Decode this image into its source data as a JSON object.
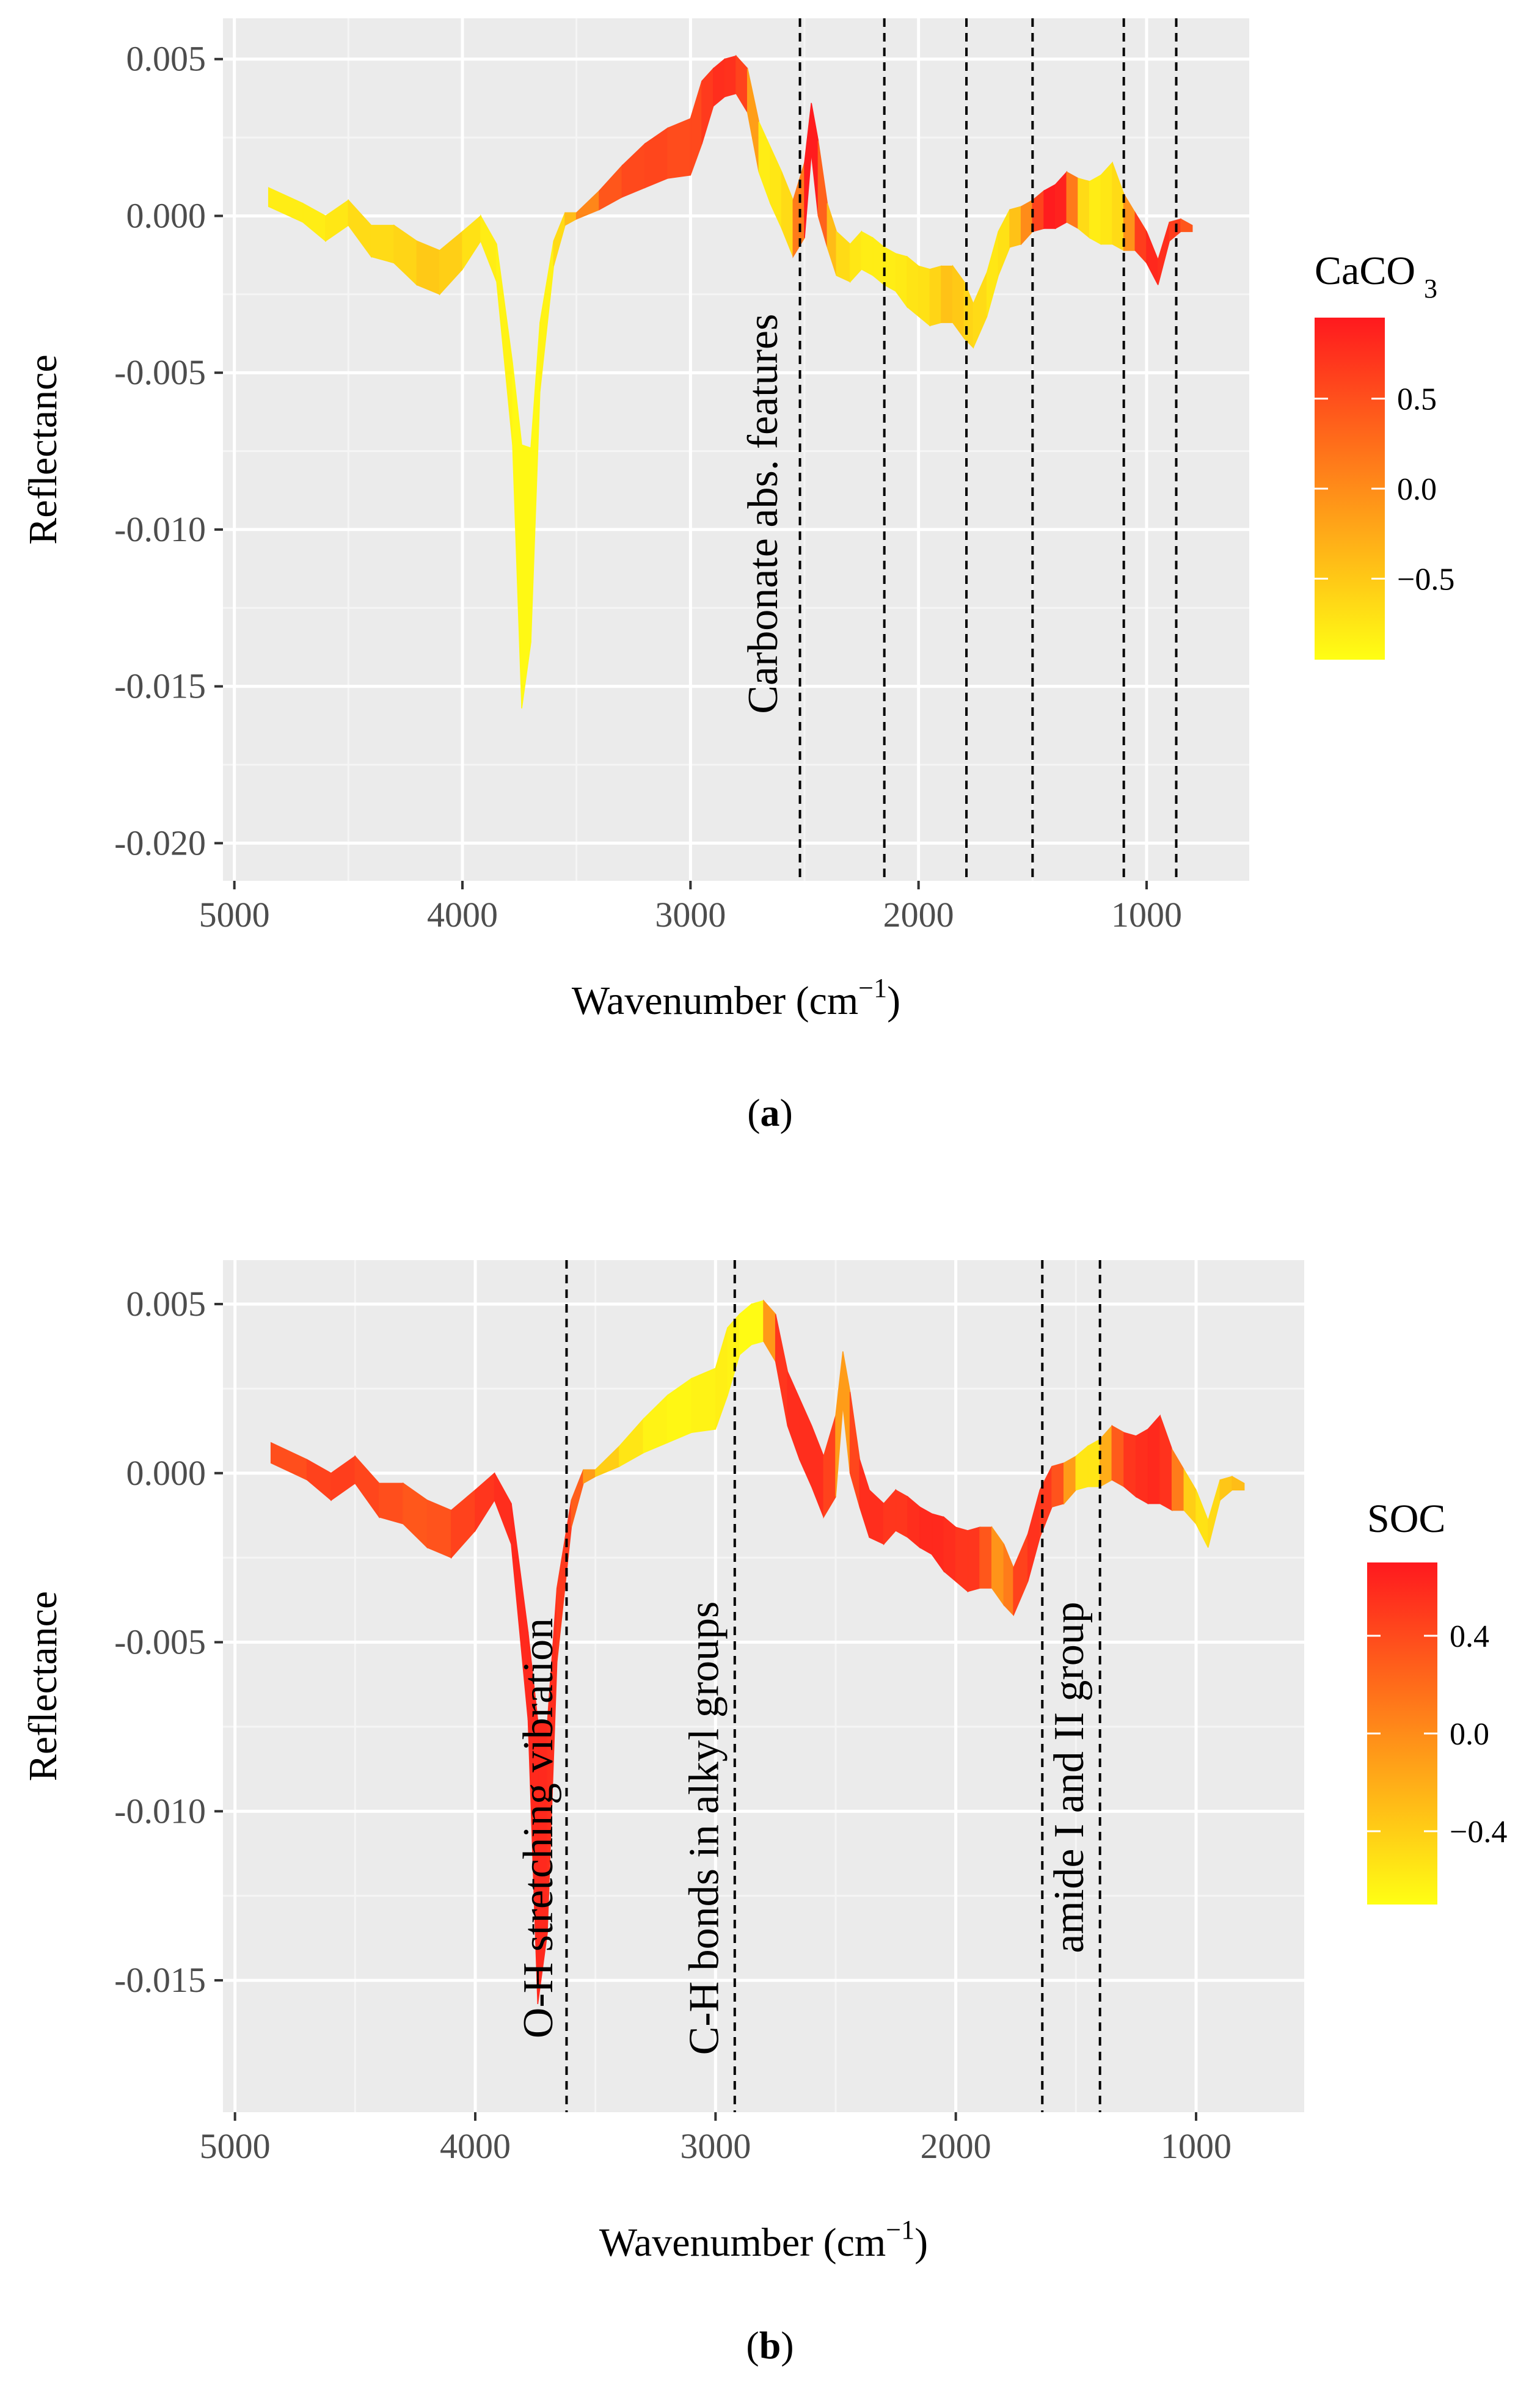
{
  "chart_data": [
    {
      "type": "line",
      "panel": "a",
      "caption_letter": "a",
      "xlabel": "Wavenumber (cm",
      "xlabel_sup": "−1",
      "xlabel_end": ")",
      "ylabel": "Reflectance",
      "xlim": [
        5050,
        550
      ],
      "ylim": [
        -0.0212,
        0.0063
      ],
      "xticks": [
        5000,
        4000,
        3000,
        2000,
        1000
      ],
      "yticks": [
        0.005,
        0.0,
        -0.005,
        -0.01,
        -0.015,
        -0.02
      ],
      "ytick_labels": [
        "0.005",
        "0.000",
        "-0.005",
        "-0.010",
        "-0.015",
        "-0.020"
      ],
      "legend_title": "CaCO",
      "legend_title_sub": "3",
      "legend_range": [
        -0.95,
        0.95
      ],
      "legend_ticks": [
        0.5,
        0.0,
        -0.5
      ],
      "legend_tick_labels": [
        "0.5",
        "0.0",
        "−0.5"
      ],
      "vlines": [
        2520,
        2150,
        1790,
        1500,
        1100,
        870
      ],
      "annotations": [
        {
          "text": "Carbonate abs. features",
          "x": 2620,
          "y": -0.0095
        }
      ],
      "spectrum_x": [
        4850,
        4700,
        4600,
        4500,
        4400,
        4300,
        4200,
        4100,
        4000,
        3920,
        3850,
        3780,
        3740,
        3700,
        3660,
        3600,
        3550,
        3500,
        3400,
        3300,
        3200,
        3100,
        3000,
        2950,
        2900,
        2850,
        2800,
        2750,
        2700,
        2650,
        2600,
        2550,
        2500,
        2470,
        2440,
        2400,
        2360,
        2300,
        2250,
        2200,
        2150,
        2100,
        2050,
        2000,
        1950,
        1900,
        1850,
        1800,
        1760,
        1700,
        1650,
        1600,
        1550,
        1500,
        1450,
        1400,
        1350,
        1300,
        1250,
        1200,
        1150,
        1100,
        1050,
        1000,
        950,
        900,
        850,
        800
      ],
      "spectrum_y": [
        0.0006,
        0.0001,
        -0.0004,
        0.0001,
        -0.0008,
        -0.0009,
        -0.0015,
        -0.0018,
        -0.0011,
        -0.0004,
        -0.0015,
        -0.006,
        -0.0115,
        -0.0105,
        -0.0045,
        -0.0012,
        -0.0001,
        0.0,
        0.0005,
        0.0011,
        0.0016,
        0.002,
        0.0022,
        0.0033,
        0.0041,
        0.0044,
        0.0045,
        0.004,
        0.0022,
        0.0013,
        0.0005,
        -0.0004,
        0.0005,
        0.0028,
        0.0012,
        -0.0003,
        -0.0012,
        -0.0015,
        -0.0011,
        -0.0013,
        -0.0016,
        -0.0018,
        -0.0021,
        -0.0024,
        -0.0026,
        -0.0025,
        -0.0025,
        -0.003,
        -0.0035,
        -0.0025,
        -0.0012,
        -0.0004,
        -0.0003,
        0.0,
        0.0002,
        0.0003,
        0.0006,
        0.0004,
        0.0002,
        0.0002,
        0.0004,
        -0.0002,
        -0.0005,
        -0.001,
        -0.0018,
        -0.0005,
        -0.0003,
        -0.0004
      ],
      "spectrum_halfwidth": [
        0.0003,
        0.0003,
        0.0004,
        0.0004,
        0.0005,
        0.0006,
        0.0007,
        0.0007,
        0.0006,
        0.0004,
        0.0006,
        0.0013,
        0.0042,
        0.0031,
        0.0011,
        0.0004,
        0.0002,
        0.0001,
        0.0003,
        0.0005,
        0.0007,
        0.0008,
        0.0009,
        0.001,
        0.0006,
        0.0006,
        0.0006,
        0.0007,
        0.0008,
        0.0009,
        0.0009,
        0.0009,
        0.0012,
        0.0008,
        0.0012,
        0.0007,
        0.0007,
        0.0006,
        0.0006,
        0.0006,
        0.0006,
        0.0006,
        0.0008,
        0.0008,
        0.0009,
        0.0009,
        0.0009,
        0.0009,
        0.0007,
        0.0007,
        0.0007,
        0.0006,
        0.0006,
        0.0005,
        0.0006,
        0.0007,
        0.0008,
        0.0008,
        0.0009,
        0.0011,
        0.0013,
        0.0009,
        0.0006,
        0.0005,
        0.0004,
        0.0003,
        0.0002,
        0.0001
      ],
      "spectrum_color_value": [
        -0.8,
        -0.8,
        -0.8,
        -0.7,
        -0.6,
        -0.7,
        -0.5,
        -0.5,
        -0.6,
        -0.8,
        -0.8,
        -0.9,
        -0.9,
        -0.9,
        -0.9,
        -0.8,
        -0.5,
        -0.3,
        0.4,
        0.5,
        0.6,
        0.55,
        0.5,
        0.6,
        0.75,
        0.8,
        0.7,
        0.5,
        -0.8,
        -0.8,
        -0.7,
        -0.6,
        0.9,
        0.95,
        0.9,
        -0.2,
        -0.6,
        -0.7,
        -0.8,
        -0.8,
        -0.8,
        -0.8,
        -0.75,
        -0.7,
        -0.7,
        -0.5,
        -0.4,
        -0.6,
        -0.6,
        -0.7,
        -0.8,
        -0.6,
        -0.3,
        0.3,
        0.9,
        0.95,
        0.8,
        -0.5,
        -0.8,
        -0.8,
        -0.7,
        -0.6,
        0.5,
        0.8,
        0.85,
        0.7,
        0.6,
        0.3
      ]
    },
    {
      "type": "line",
      "panel": "b",
      "caption_letter": "b",
      "xlabel": "Wavenumber (cm",
      "xlabel_sup": "−1",
      "xlabel_end": ")",
      "ylabel": "Reflectance",
      "xlim": [
        5050,
        550
      ],
      "ylim": [
        -0.0189,
        0.0063
      ],
      "xticks": [
        5000,
        4000,
        3000,
        2000,
        1000
      ],
      "yticks": [
        0.005,
        0.0,
        -0.005,
        -0.01,
        -0.015
      ],
      "ytick_labels": [
        "0.005",
        "0.000",
        "-0.005",
        "-0.010",
        "-0.015"
      ],
      "legend_title": "SOC",
      "legend_range": [
        -0.7,
        0.7
      ],
      "legend_ticks": [
        0.4,
        0.0,
        -0.4
      ],
      "legend_tick_labels": [
        "0.4",
        "0.0",
        "−0.4"
      ],
      "vlines": [
        3620,
        2920,
        1640,
        1400
      ],
      "annotations": [
        {
          "text": "O-H stretching vibration",
          "x": 3680,
          "y": -0.0105
        },
        {
          "text": "C-H  bonds in alkyl groups",
          "x": 2990,
          "y": -0.0105
        },
        {
          "text": "amide I and II group",
          "x": 1470,
          "y": -0.009
        }
      ],
      "spectrum_x": [
        4850,
        4700,
        4600,
        4500,
        4400,
        4300,
        4200,
        4100,
        4000,
        3920,
        3850,
        3780,
        3740,
        3700,
        3660,
        3600,
        3550,
        3500,
        3400,
        3300,
        3200,
        3100,
        3000,
        2950,
        2900,
        2850,
        2800,
        2750,
        2700,
        2650,
        2600,
        2550,
        2500,
        2470,
        2440,
        2400,
        2360,
        2300,
        2250,
        2200,
        2150,
        2100,
        2050,
        2000,
        1950,
        1900,
        1850,
        1800,
        1760,
        1700,
        1650,
        1600,
        1550,
        1500,
        1450,
        1400,
        1350,
        1300,
        1250,
        1200,
        1150,
        1100,
        1050,
        1000,
        950,
        900,
        850,
        800
      ],
      "spectrum_y": [
        0.0006,
        0.0001,
        -0.0004,
        0.0001,
        -0.0008,
        -0.0009,
        -0.0015,
        -0.0018,
        -0.0011,
        -0.0004,
        -0.0015,
        -0.006,
        -0.0115,
        -0.0105,
        -0.0045,
        -0.0012,
        -0.0001,
        0.0,
        0.0005,
        0.0011,
        0.0016,
        0.002,
        0.0022,
        0.0033,
        0.0041,
        0.0044,
        0.0045,
        0.004,
        0.0022,
        0.0013,
        0.0005,
        -0.0004,
        0.0005,
        0.0028,
        0.0012,
        -0.0003,
        -0.0012,
        -0.0015,
        -0.0011,
        -0.0013,
        -0.0016,
        -0.0018,
        -0.0021,
        -0.0024,
        -0.0026,
        -0.0025,
        -0.0025,
        -0.003,
        -0.0035,
        -0.0025,
        -0.0012,
        -0.0004,
        -0.0003,
        0.0,
        0.0002,
        0.0003,
        0.0006,
        0.0004,
        0.0002,
        0.0002,
        0.0004,
        -0.0002,
        -0.0005,
        -0.001,
        -0.0018,
        -0.0005,
        -0.0003,
        -0.0004
      ],
      "spectrum_halfwidth": [
        0.0003,
        0.0003,
        0.0004,
        0.0004,
        0.0005,
        0.0006,
        0.0007,
        0.0007,
        0.0006,
        0.0004,
        0.0006,
        0.0013,
        0.0042,
        0.0031,
        0.0011,
        0.0004,
        0.0002,
        0.0001,
        0.0003,
        0.0005,
        0.0007,
        0.0008,
        0.0009,
        0.001,
        0.0006,
        0.0006,
        0.0006,
        0.0007,
        0.0008,
        0.0009,
        0.0009,
        0.0009,
        0.0012,
        0.0008,
        0.0012,
        0.0007,
        0.0007,
        0.0006,
        0.0006,
        0.0006,
        0.0006,
        0.0006,
        0.0008,
        0.0008,
        0.0009,
        0.0009,
        0.0009,
        0.0009,
        0.0007,
        0.0007,
        0.0007,
        0.0006,
        0.0006,
        0.0005,
        0.0006,
        0.0007,
        0.0008,
        0.0008,
        0.0009,
        0.0011,
        0.0013,
        0.0009,
        0.0006,
        0.0005,
        0.0004,
        0.0003,
        0.0002,
        0.0001
      ],
      "spectrum_color_value": [
        0.35,
        0.4,
        0.5,
        0.45,
        0.4,
        0.35,
        0.3,
        0.4,
        0.5,
        0.55,
        0.6,
        0.6,
        0.6,
        0.6,
        0.55,
        0.45,
        0.1,
        -0.3,
        -0.5,
        -0.6,
        -0.65,
        -0.65,
        -0.6,
        -0.6,
        -0.65,
        -0.7,
        -0.65,
        0.5,
        0.55,
        0.6,
        0.55,
        0.6,
        0.3,
        -0.5,
        0.3,
        0.55,
        0.6,
        0.55,
        0.5,
        0.55,
        0.6,
        0.6,
        0.6,
        0.55,
        0.5,
        0.55,
        0.1,
        -0.2,
        0.4,
        0.5,
        0.6,
        0.4,
        0.3,
        -0.5,
        -0.6,
        -0.5,
        0.1,
        0.5,
        0.55,
        0.6,
        0.6,
        0.5,
        -0.3,
        -0.5,
        -0.55,
        -0.4,
        -0.3,
        -0.3
      ]
    }
  ]
}
